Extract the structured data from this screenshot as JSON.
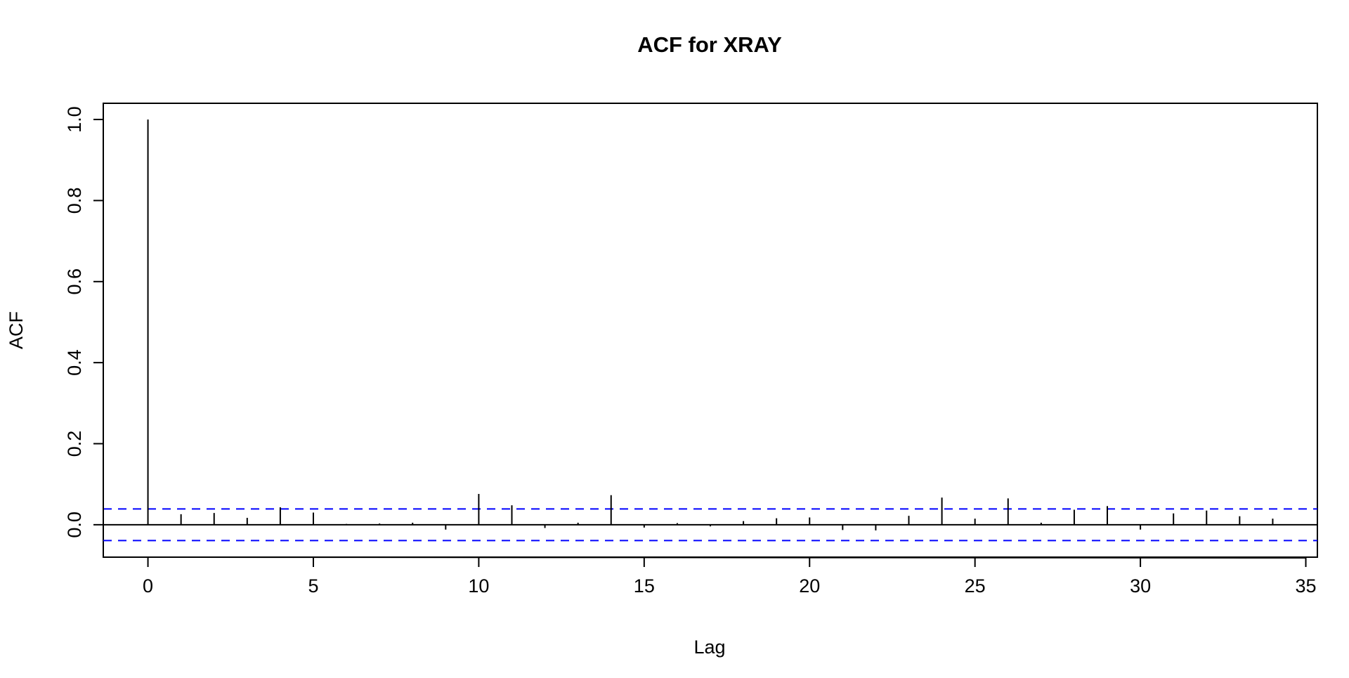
{
  "chart_data": {
    "type": "bar",
    "title": "ACF for XRAY",
    "xlabel": "Lag",
    "ylabel": "ACF",
    "xlim": [
      -1.35,
      35.35
    ],
    "ylim": [
      -0.08,
      1.04
    ],
    "x_ticks": [
      0,
      5,
      10,
      15,
      20,
      25,
      30,
      35
    ],
    "y_ticks": [
      0.0,
      0.2,
      0.4,
      0.6,
      0.8,
      1.0
    ],
    "x_tick_labels": [
      "0",
      "5",
      "10",
      "15",
      "20",
      "25",
      "30",
      "35"
    ],
    "y_tick_labels": [
      "0.0",
      "0.2",
      "0.4",
      "0.6",
      "0.8",
      "1.0"
    ],
    "confidence_bounds": [
      0.039,
      -0.039
    ],
    "confidence_color": "#0000ff",
    "stem_color": "#000000",
    "grid": false,
    "lags": [
      0,
      1,
      2,
      3,
      4,
      5,
      6,
      7,
      8,
      9,
      10,
      11,
      12,
      13,
      14,
      15,
      16,
      17,
      18,
      19,
      20,
      21,
      22,
      23,
      24,
      25,
      26,
      27,
      28,
      29,
      30,
      31,
      32,
      33,
      34
    ],
    "values": [
      1.0,
      0.026,
      0.029,
      0.017,
      0.043,
      0.03,
      0.002,
      0.003,
      0.005,
      -0.012,
      0.076,
      0.048,
      -0.008,
      0.005,
      0.073,
      -0.007,
      0.004,
      -0.004,
      0.009,
      0.016,
      0.018,
      -0.013,
      -0.014,
      0.022,
      0.067,
      0.015,
      0.065,
      0.005,
      0.037,
      0.046,
      -0.012,
      0.028,
      0.035,
      0.021,
      0.015
    ]
  }
}
